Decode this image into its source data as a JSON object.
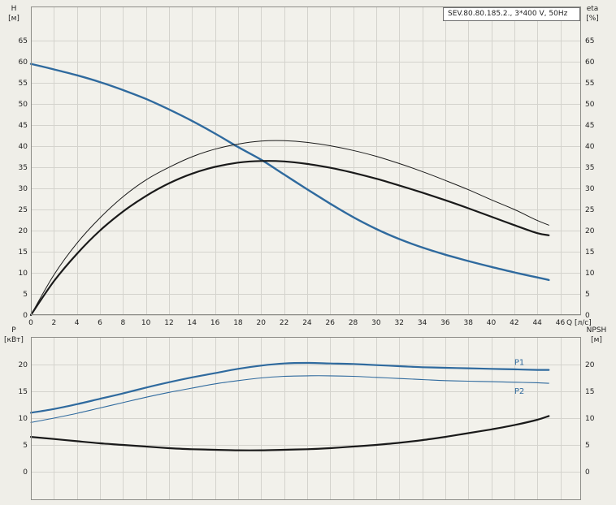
{
  "title_box": "SEV.80.80.185.2., 3*400 V, 50Hz",
  "labels": {
    "h": "H",
    "h_unit": "[м]",
    "eta": "eta",
    "eta_unit": "[%]",
    "p": "P",
    "p_unit": "[кВт]",
    "npsh": "NPSH",
    "npsh_unit": "[м]",
    "q_axis": "Q [л/с]"
  },
  "colors": {
    "page_bg": "#efeee8",
    "plot_bg": "#f2f1eb",
    "grid": "#d4d3cd",
    "frame": "#8d8d88",
    "text": "#1f1f1f",
    "blue": "#2f6a9e",
    "black": "#1a1a1a"
  },
  "chart_data": [
    {
      "type": "line",
      "panel": "top",
      "title": "SEV.80.80.185.2., 3*400 V, 50Hz",
      "xlabel": "Q [л/с]",
      "ylabel_left": "H [м]",
      "ylabel_right": "eta [%]",
      "xlim": [
        0,
        47.8
      ],
      "ylim": [
        0,
        73.1
      ],
      "grid": true,
      "legend": "none",
      "show_x_labels": true,
      "x_ticks": [
        0,
        2,
        4,
        6,
        8,
        10,
        12,
        14,
        16,
        18,
        20,
        22,
        24,
        26,
        28,
        30,
        32,
        34,
        36,
        38,
        40,
        42,
        44,
        46
      ],
      "y_ticks": [
        0,
        5,
        10,
        15,
        20,
        25,
        30,
        35,
        40,
        45,
        50,
        55,
        60,
        65
      ],
      "series": [
        {
          "name": "H-curve",
          "color": "#2f6a9e",
          "width": 2.4,
          "x": [
            0,
            2,
            4,
            6,
            8,
            10,
            12,
            14,
            16,
            18,
            20,
            22,
            24,
            26,
            28,
            30,
            32,
            34,
            36,
            38,
            40,
            42,
            44,
            45
          ],
          "y": [
            59.5,
            58.2,
            56.8,
            55.2,
            53.3,
            51.2,
            48.7,
            46.0,
            43.0,
            39.8,
            36.8,
            33.3,
            29.8,
            26.4,
            23.2,
            20.4,
            18.0,
            16.0,
            14.3,
            12.8,
            11.4,
            10.1,
            8.9,
            8.3
          ]
        },
        {
          "name": "eta-thin",
          "color": "#1a1a1a",
          "width": 1,
          "x": [
            0,
            2,
            4,
            6,
            8,
            10,
            12,
            14,
            16,
            18,
            20,
            22,
            24,
            26,
            28,
            30,
            32,
            34,
            36,
            38,
            40,
            42,
            44,
            45
          ],
          "y": [
            0,
            9.5,
            17.0,
            23.0,
            28.0,
            32.0,
            35.0,
            37.5,
            39.3,
            40.5,
            41.2,
            41.3,
            40.9,
            40.1,
            39.0,
            37.6,
            35.9,
            34.0,
            31.9,
            29.7,
            27.3,
            25.0,
            22.4,
            21.3
          ]
        },
        {
          "name": "eta-thick",
          "color": "#1a1a1a",
          "width": 2.2,
          "x": [
            0,
            2,
            4,
            6,
            8,
            10,
            12,
            14,
            16,
            18,
            20,
            22,
            24,
            26,
            28,
            30,
            32,
            34,
            36,
            38,
            40,
            42,
            44,
            45
          ],
          "y": [
            0,
            8.0,
            14.5,
            20.0,
            24.5,
            28.2,
            31.2,
            33.5,
            35.1,
            36.1,
            36.5,
            36.4,
            35.8,
            34.9,
            33.7,
            32.3,
            30.7,
            29.0,
            27.2,
            25.3,
            23.3,
            21.3,
            19.4,
            18.9
          ]
        }
      ]
    },
    {
      "type": "line",
      "panel": "bottom",
      "title": "",
      "xlabel": "",
      "ylabel_left": "P [кВт]",
      "ylabel_right": "NPSH [м]",
      "xlim": [
        0,
        47.8
      ],
      "ylim": [
        -5.3,
        25.15
      ],
      "grid": true,
      "legend": "inline-annotations",
      "show_x_labels": false,
      "x_ticks": [
        0,
        2,
        4,
        6,
        8,
        10,
        12,
        14,
        16,
        18,
        20,
        22,
        24,
        26,
        28,
        30,
        32,
        34,
        36,
        38,
        40,
        42,
        44,
        46
      ],
      "y_ticks": [
        0,
        5,
        10,
        15,
        20
      ],
      "series": [
        {
          "name": "P1",
          "color": "#2f6a9e",
          "width": 2.2,
          "x": [
            0,
            2,
            4,
            6,
            8,
            10,
            12,
            14,
            16,
            18,
            20,
            22,
            24,
            26,
            28,
            30,
            32,
            34,
            36,
            38,
            40,
            42,
            44,
            45
          ],
          "y": [
            11.0,
            11.7,
            12.6,
            13.6,
            14.6,
            15.7,
            16.7,
            17.6,
            18.4,
            19.2,
            19.8,
            20.2,
            20.3,
            20.2,
            20.1,
            19.9,
            19.7,
            19.5,
            19.4,
            19.3,
            19.2,
            19.1,
            19.0,
            19.0
          ]
        },
        {
          "name": "P2",
          "color": "#2f6a9e",
          "width": 1.1,
          "x": [
            0,
            2,
            4,
            6,
            8,
            10,
            12,
            14,
            16,
            18,
            20,
            22,
            24,
            26,
            28,
            30,
            32,
            34,
            36,
            38,
            40,
            42,
            44,
            45
          ],
          "y": [
            9.2,
            10.0,
            10.9,
            11.9,
            12.9,
            13.9,
            14.8,
            15.6,
            16.4,
            17.0,
            17.5,
            17.8,
            17.9,
            17.9,
            17.8,
            17.6,
            17.4,
            17.2,
            17.0,
            16.9,
            16.8,
            16.7,
            16.6,
            16.5
          ]
        },
        {
          "name": "NPSH",
          "color": "#1a1a1a",
          "width": 2.2,
          "x": [
            0,
            2,
            4,
            6,
            8,
            10,
            12,
            14,
            16,
            18,
            20,
            22,
            24,
            26,
            28,
            30,
            32,
            34,
            36,
            38,
            40,
            42,
            44,
            45
          ],
          "y": [
            6.5,
            6.1,
            5.7,
            5.3,
            5.0,
            4.7,
            4.4,
            4.2,
            4.1,
            4.0,
            4.0,
            4.1,
            4.2,
            4.4,
            4.7,
            5.0,
            5.4,
            5.9,
            6.5,
            7.2,
            7.9,
            8.7,
            9.7,
            10.4
          ]
        }
      ],
      "annotations": [
        {
          "text": "P1",
          "x": 42,
          "y": 20.4
        },
        {
          "text": "P2",
          "x": 42,
          "y": 15.0
        }
      ]
    }
  ]
}
